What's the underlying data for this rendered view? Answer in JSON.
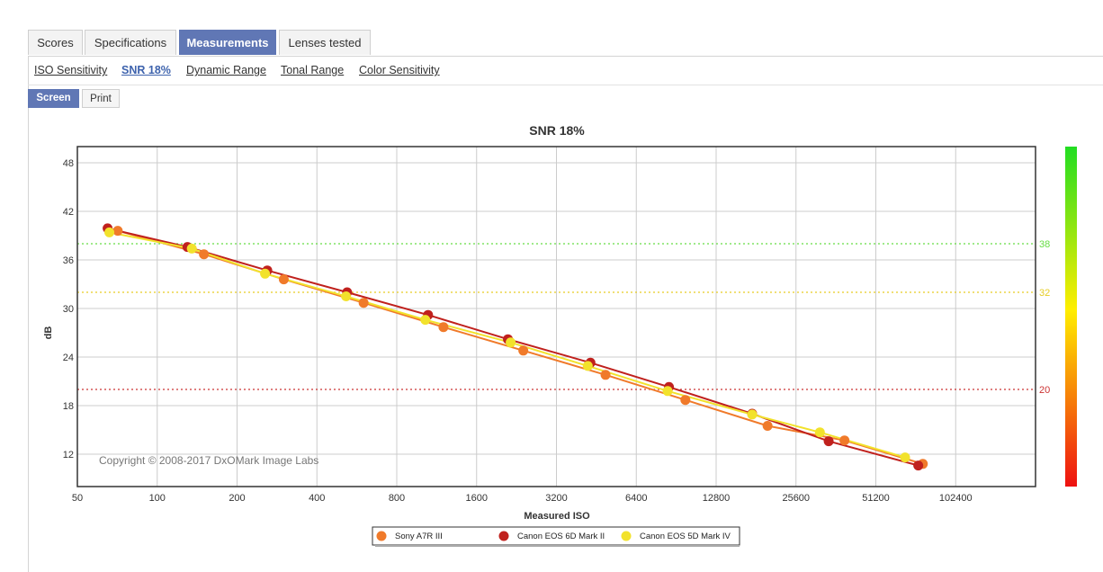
{
  "tabs": [
    {
      "label": "Scores",
      "active": false
    },
    {
      "label": "Specifications",
      "active": false
    },
    {
      "label": "Measurements",
      "active": true
    },
    {
      "label": "Lenses tested",
      "active": false
    }
  ],
  "subnav": [
    {
      "label": "ISO Sensitivity",
      "active": false
    },
    {
      "label": "SNR 18%",
      "active": true
    },
    {
      "label": "Dynamic Range",
      "active": false
    },
    {
      "label": "Tonal Range",
      "active": false
    },
    {
      "label": "Color Sensitivity",
      "active": false
    }
  ],
  "modes": [
    {
      "label": "Screen",
      "active": true
    },
    {
      "label": "Print",
      "active": false
    }
  ],
  "chart_data": {
    "type": "line",
    "title": "SNR 18%",
    "xlabel": "Measured ISO",
    "ylabel": "dB",
    "x_scale": "log2",
    "x_ticks": [
      50,
      100,
      200,
      400,
      800,
      1600,
      3200,
      6400,
      12800,
      25600,
      51200,
      102400
    ],
    "xlim": [
      50,
      204800
    ],
    "y_ticks": [
      12,
      18,
      24,
      30,
      36,
      42,
      48
    ],
    "ylim": [
      8,
      50
    ],
    "grid": true,
    "copyright": "Copyright © 2008-2017 DxOMark Image Labs",
    "reference_lines": [
      {
        "y": 38,
        "label": "38",
        "color": "#66dd44"
      },
      {
        "y": 32,
        "label": "32",
        "color": "#e6cc22"
      },
      {
        "y": 20,
        "label": "20",
        "color": "#cc3333"
      }
    ],
    "color_scale": {
      "top": "#22dd22",
      "middle": "#ffee00",
      "bottom": "#ee1111"
    },
    "series": [
      {
        "name": "Sony A7R III",
        "color": "#f07a2a",
        "points": [
          [
            71,
            39.6
          ],
          [
            150,
            36.7
          ],
          [
            300,
            33.6
          ],
          [
            600,
            30.7
          ],
          [
            1200,
            27.7
          ],
          [
            2400,
            24.8
          ],
          [
            4900,
            21.8
          ],
          [
            9800,
            18.7
          ],
          [
            20000,
            15.5
          ],
          [
            39000,
            13.7
          ],
          [
            77000,
            10.8
          ]
        ]
      },
      {
        "name": "Canon EOS 6D Mark II",
        "color": "#c0211d",
        "points": [
          [
            65,
            39.9
          ],
          [
            130,
            37.6
          ],
          [
            260,
            34.7
          ],
          [
            520,
            32.0
          ],
          [
            1050,
            29.2
          ],
          [
            2100,
            26.2
          ],
          [
            4300,
            23.3
          ],
          [
            8500,
            20.3
          ],
          [
            17500,
            17.0
          ],
          [
            34000,
            13.6
          ],
          [
            74000,
            10.6
          ]
        ]
      },
      {
        "name": "Canon EOS 5D Mark IV",
        "color": "#f2e22c",
        "points": [
          [
            66,
            39.4
          ],
          [
            135,
            37.4
          ],
          [
            255,
            34.3
          ],
          [
            515,
            31.5
          ],
          [
            1025,
            28.6
          ],
          [
            2150,
            25.8
          ],
          [
            4200,
            22.9
          ],
          [
            8400,
            19.8
          ],
          [
            17500,
            16.9
          ],
          [
            31500,
            14.7
          ],
          [
            66000,
            11.6
          ]
        ]
      }
    ]
  }
}
